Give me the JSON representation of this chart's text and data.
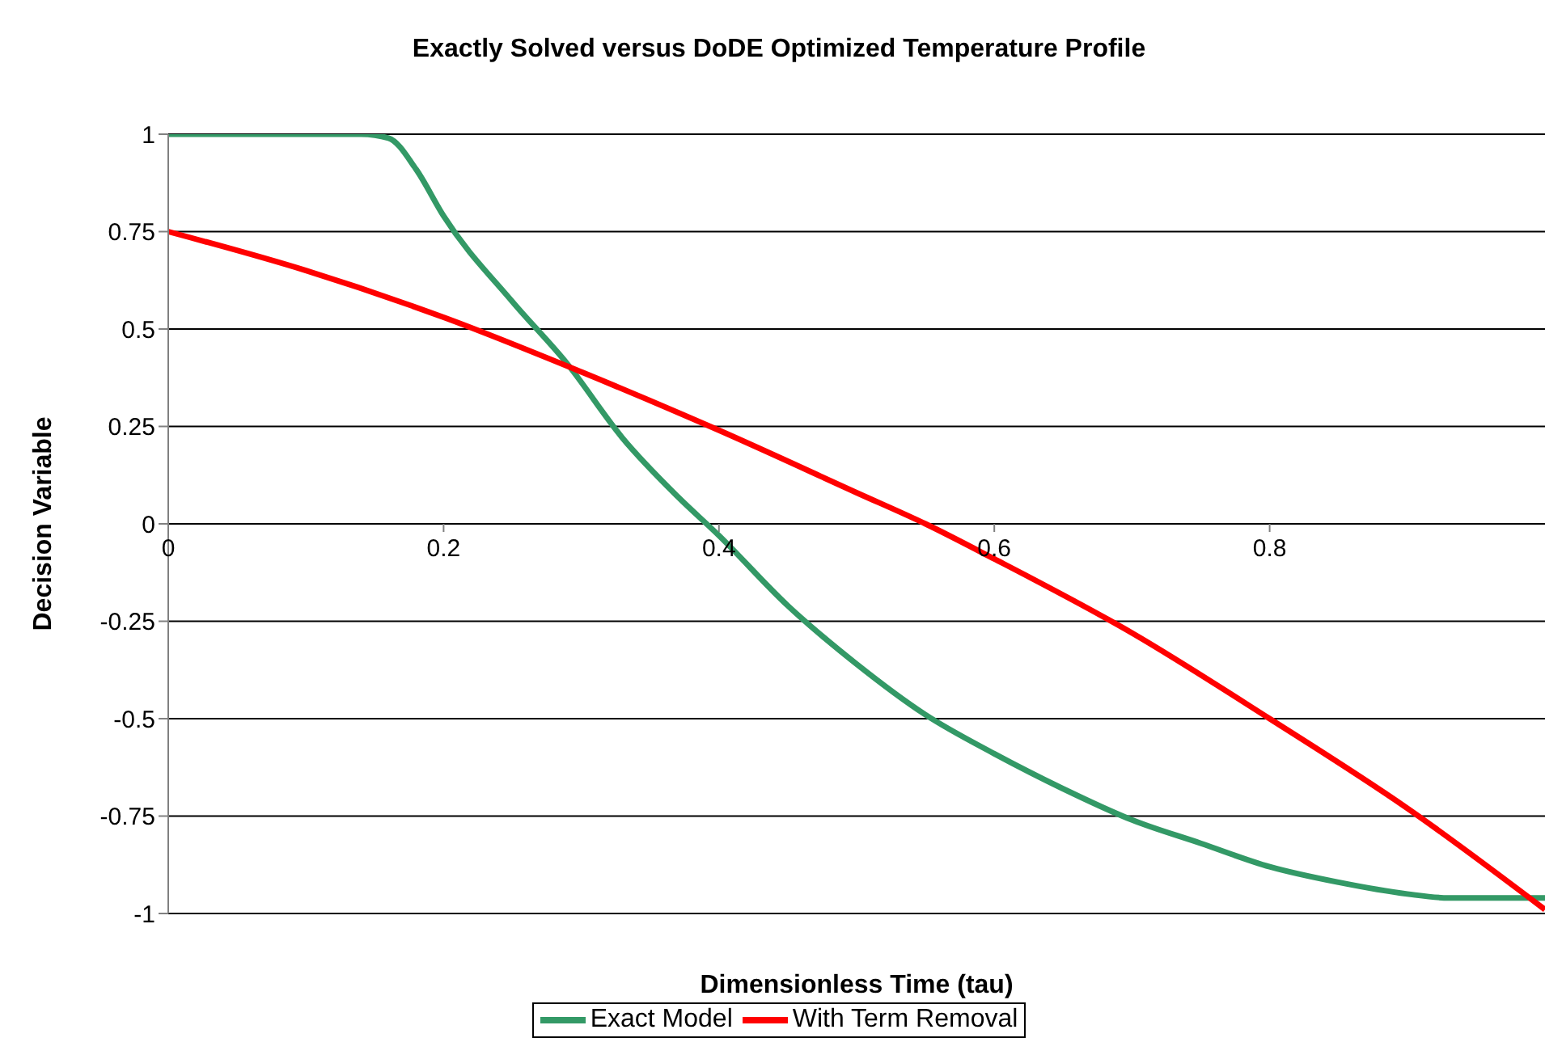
{
  "chart_data": {
    "type": "line",
    "title": "Exactly Solved versus DoDE Optimized Temperature Profile",
    "xlabel": "Dimensionless Time (tau)",
    "ylabel": "Decision Variable",
    "xlim": [
      0,
      1
    ],
    "xticks": [
      0,
      0.2,
      0.4,
      0.6,
      0.8
    ],
    "ylim": [
      -1,
      1
    ],
    "yticks": [
      -1,
      -0.75,
      -0.5,
      -0.25,
      0,
      0.25,
      0.5,
      0.75,
      1
    ],
    "grid": "y",
    "legend": "bottom",
    "marker": "none",
    "line_style": "solid",
    "series": [
      {
        "name": "Exact Model",
        "color": "#339966",
        "x": [
          0,
          0.05,
          0.1,
          0.14,
          0.16,
          0.18,
          0.2,
          0.25,
          0.29,
          0.33,
          0.37,
          0.4,
          0.45,
          0.5,
          0.55,
          0.6,
          0.65,
          0.7,
          0.75,
          0.8,
          0.85,
          0.9,
          0.93,
          0.96,
          1.0
        ],
        "values": [
          1,
          1,
          1,
          1,
          0.99,
          0.91,
          0.79,
          0.57,
          0.41,
          0.22,
          0.07,
          -0.03,
          -0.21,
          -0.36,
          -0.49,
          -0.59,
          -0.68,
          -0.76,
          -0.82,
          -0.88,
          -0.92,
          -0.95,
          -0.96,
          -0.96,
          -0.96
        ]
      },
      {
        "name": "With Term Removal",
        "color": "#ff0000",
        "x": [
          0,
          0.1,
          0.2,
          0.3,
          0.4,
          0.5,
          0.55,
          0.6,
          0.7,
          0.8,
          0.9,
          1.0
        ],
        "values": [
          0.75,
          0.65,
          0.53,
          0.39,
          0.24,
          0.08,
          0,
          -0.09,
          -0.28,
          -0.5,
          -0.73,
          -0.99
        ]
      }
    ]
  }
}
